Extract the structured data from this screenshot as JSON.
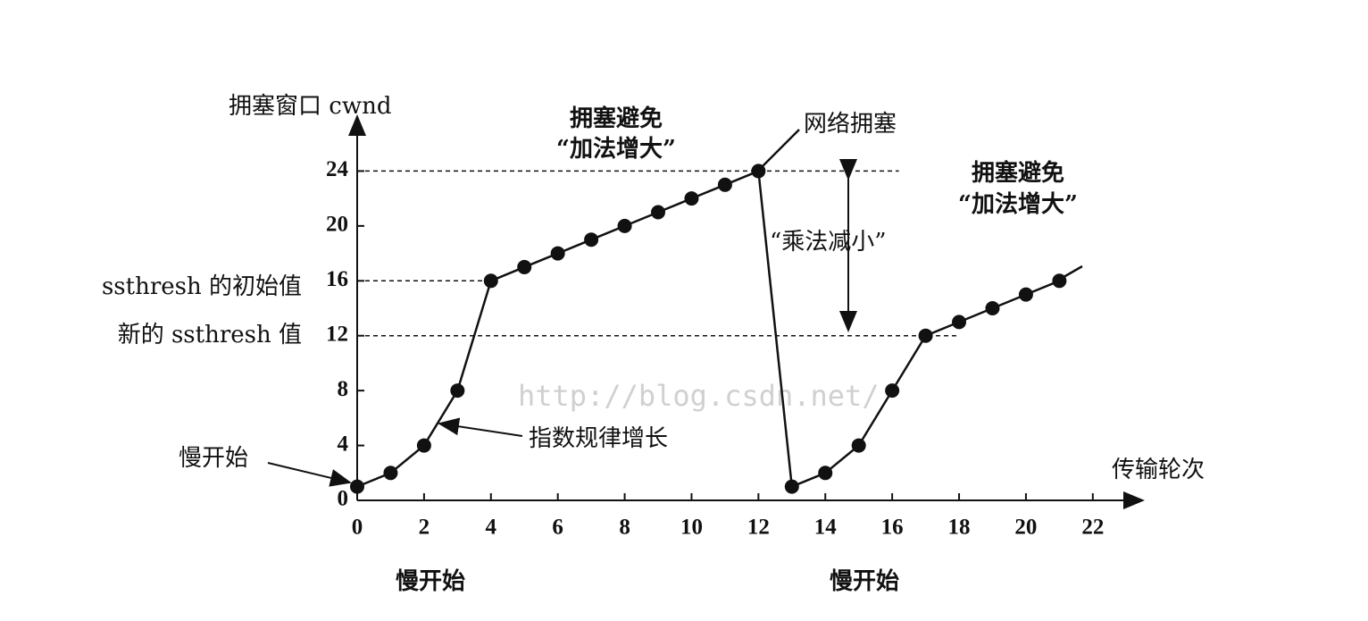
{
  "chart_data": {
    "type": "line",
    "y_label": "拥塞窗口 cwnd",
    "x_label": "传输轮次",
    "x": [
      0,
      1,
      2,
      3,
      4,
      5,
      6,
      7,
      8,
      9,
      10,
      11,
      12,
      13,
      14,
      15,
      16,
      17,
      18,
      19,
      20,
      21
    ],
    "series": [
      {
        "name": "cwnd",
        "color": "#111111",
        "values": [
          1,
          2,
          4,
          8,
          16,
          17,
          18,
          19,
          20,
          21,
          22,
          23,
          24,
          1,
          2,
          4,
          8,
          12,
          13,
          14,
          15,
          16
        ]
      }
    ],
    "xlim": [
      0,
      23.5
    ],
    "ylim": [
      0,
      28
    ],
    "xticks": [
      0,
      2,
      4,
      6,
      8,
      10,
      12,
      14,
      16,
      18,
      20,
      22
    ],
    "yticks": [
      0,
      4,
      8,
      12,
      16,
      20,
      24
    ],
    "hlines": [
      {
        "y": 24,
        "xmax": 16.2
      },
      {
        "y": 16,
        "xmax": 4
      },
      {
        "y": 12,
        "xmax": 18
      }
    ],
    "annotations": [
      "ssthresh 的初始值",
      "新的 ssthresh 值",
      "慢开始",
      "指数规律增长",
      "拥塞避免",
      "“加法增大”",
      "网络拥塞",
      "“乘法减小”",
      "拥塞避免",
      "“加法增大”",
      "慢开始",
      "慢开始",
      "http://blog.csdn.net/"
    ]
  }
}
